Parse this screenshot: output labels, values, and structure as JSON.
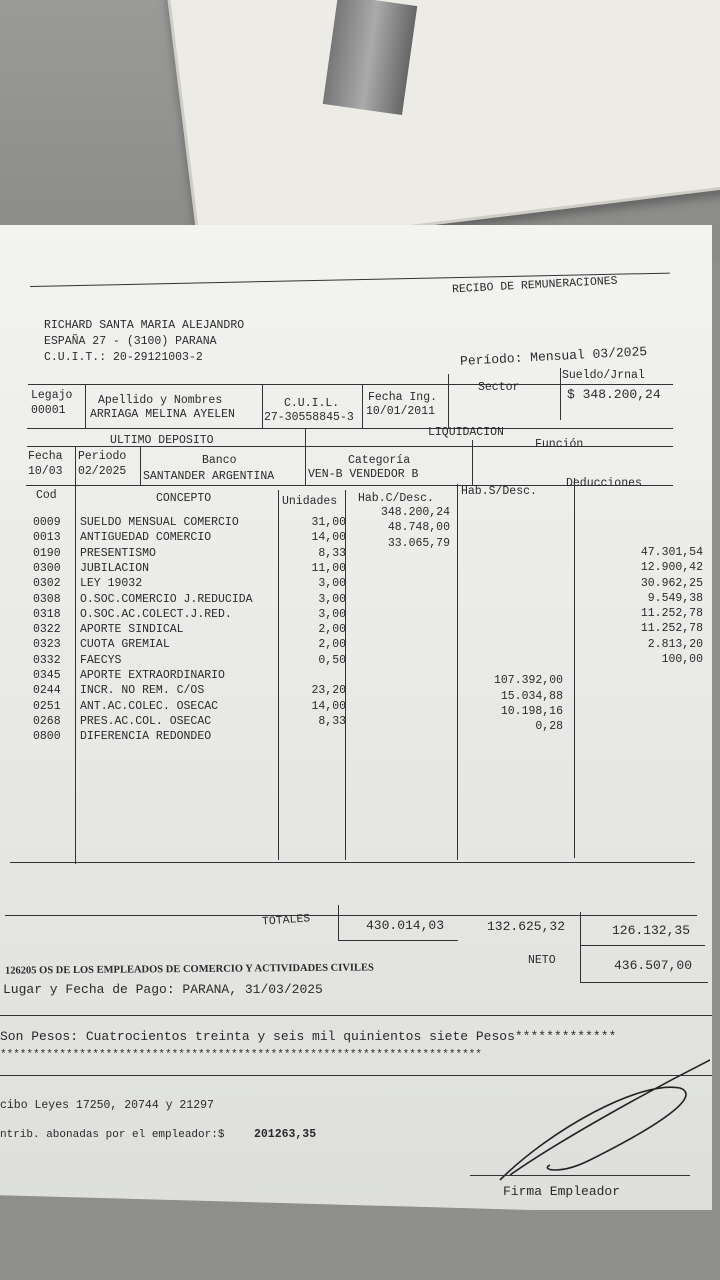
{
  "header": {
    "title": "RECIBO DE REMUNERACIONES",
    "employer_name": "RICHARD SANTA MARIA ALEJANDRO",
    "employer_address": "ESPAÑA 27  - (3100) PARANA",
    "employer_cuit": "C.U.I.T.: 20-29121003-2",
    "period": "Período: Mensual 03/2025"
  },
  "employee": {
    "legajo_label": "Legajo",
    "legajo": "00001",
    "name_label": "Apellido y Nombres",
    "name": "ARRIAGA MELINA AYELEN",
    "cuil_label": "C.U.I.L.",
    "cuil": "27-30558845-3",
    "fecha_ing_label": "Fecha Ing.",
    "fecha_ing": "10/01/2011",
    "sector_label": "Sector",
    "sueldo_label": "Sueldo/Jrnal",
    "sueldo": "$ 348.200,24"
  },
  "deposit": {
    "title": "ULTIMO DEPOSITO",
    "fecha_label": "Fecha",
    "fecha": "10/03",
    "periodo_label": "Periodo",
    "periodo": "02/2025",
    "banco_label": "Banco",
    "banco": "SANTANDER ARGENTINA"
  },
  "liquidacion": {
    "title": "LIQUIDACION",
    "categoria_label": "Categoría",
    "categoria": "VEN-B VENDEDOR B",
    "funcion_label": "Función"
  },
  "table": {
    "headers": [
      "Cod",
      "CONCEPTO",
      "Unidades",
      "Hab.C/Desc.",
      "Hab.S/Desc.",
      "Deducciones"
    ],
    "rows": [
      [
        "0009",
        "SUELDO MENSUAL COMERCIO",
        "31,00",
        "348.200,24",
        "",
        ""
      ],
      [
        "0013",
        "ANTIGUEDAD COMERCIO",
        "14,00",
        "48.748,00",
        "",
        ""
      ],
      [
        "0190",
        "PRESENTISMO",
        "8,33",
        "33.065,79",
        "",
        ""
      ],
      [
        "0300",
        "JUBILACION",
        "11,00",
        "",
        "",
        "47.301,54"
      ],
      [
        "0302",
        "LEY 19032",
        "3,00",
        "",
        "",
        "12.900,42"
      ],
      [
        "0308",
        "O.SOC.COMERCIO J.REDUCIDA",
        "3,00",
        "",
        "",
        "30.962,25"
      ],
      [
        "0318",
        "O.SOC.AC.COLECT.J.RED.",
        "3,00",
        "",
        "",
        "9.549,38"
      ],
      [
        "0322",
        "APORTE SINDICAL",
        "2,00",
        "",
        "",
        "11.252,78"
      ],
      [
        "0323",
        "CUOTA GREMIAL",
        "2,00",
        "",
        "",
        "11.252,78"
      ],
      [
        "0332",
        "FAECYS",
        "0,50",
        "",
        "",
        "2.813,20"
      ],
      [
        "0345",
        "APORTE EXTRAORDINARIO",
        "",
        "",
        "",
        "100,00"
      ],
      [
        "0244",
        "INCR. NO REM. C/OS",
        "23,20",
        "",
        "107.392,00",
        ""
      ],
      [
        "0251",
        "ANT.AC.COLEC. OSECAC",
        "14,00",
        "",
        "15.034,88",
        ""
      ],
      [
        "0268",
        "PRES.AC.COL. OSECAC",
        "8,33",
        "",
        "10.198,16",
        ""
      ],
      [
        "0800",
        "DIFERENCIA REDONDEO",
        "",
        "",
        "0,28",
        ""
      ]
    ]
  },
  "totals": {
    "label": "TOTALES",
    "hab_c_desc": "430.014,03",
    "hab_s_desc": "132.625,32",
    "deducciones": "126.132,35",
    "neto_label": "NETO",
    "neto": "436.507,00"
  },
  "footer": {
    "obra_social": "126205 OS  DE LOS EMPLEADOS DE COMERCIO Y ACTIVIDADES CIVILES",
    "lugar_fecha": "Lugar y Fecha de Pago: PARANA, 31/03/2025",
    "son_pesos": "Son Pesos: Cuatrocientos treinta y seis mil quinientos siete Pesos*************",
    "stars": "*************************************************************************",
    "leyes": "cibo Leyes 17250, 20744 y 21297",
    "contrib_label": "ntrib. abonadas por el empleador:$",
    "contrib_value": "201263,35",
    "firma": "Firma Empleador"
  }
}
